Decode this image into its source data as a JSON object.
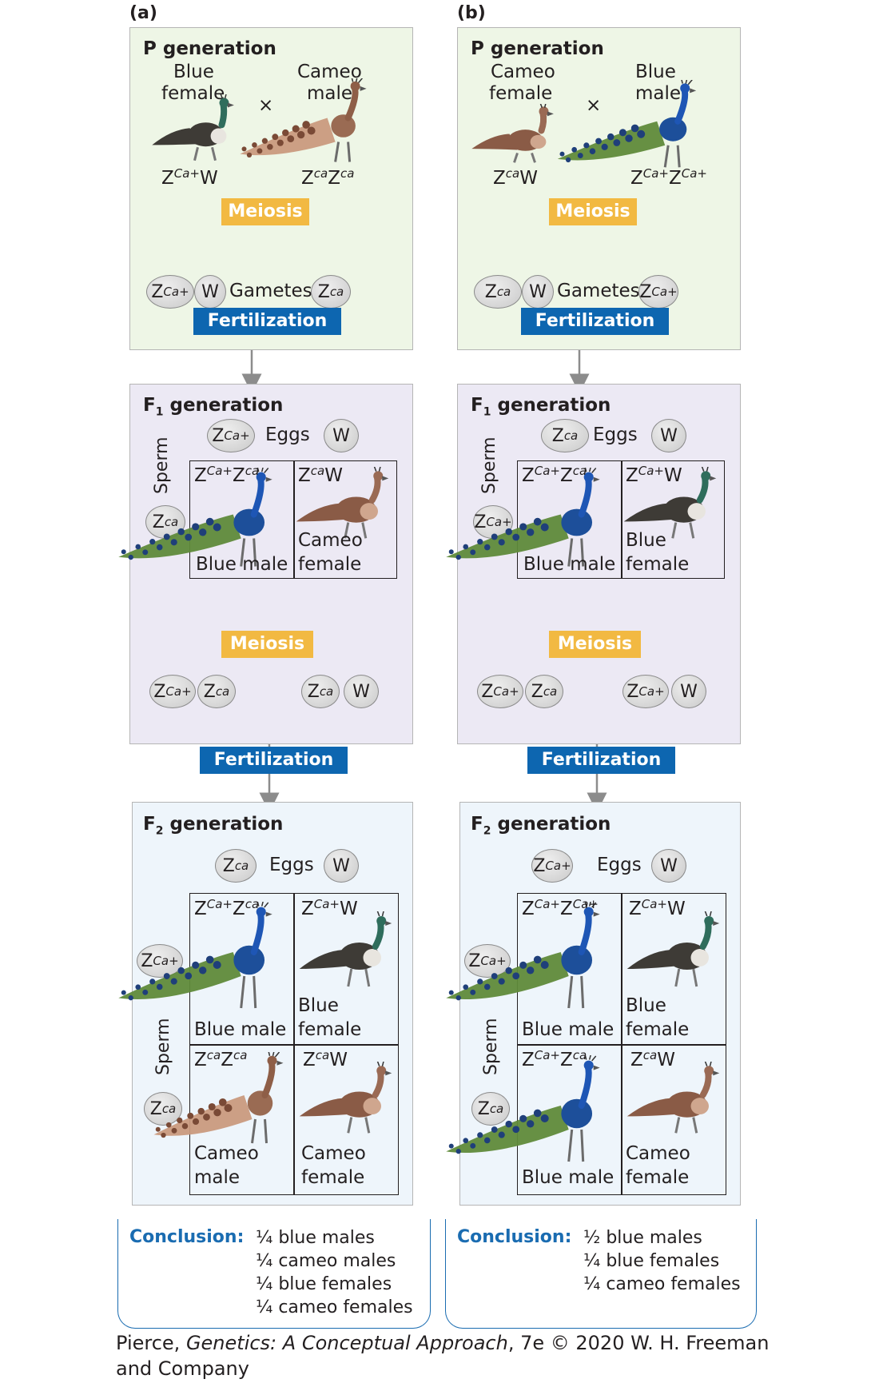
{
  "panels": {
    "a": {
      "label": "(a)",
      "p": {
        "title": "P generation",
        "female_label_1": "Blue",
        "female_label_2": "female",
        "male_label_1": "Cameo",
        "male_label_2": "male",
        "cross": "×",
        "female_genotype": "Z<sup>Ca+</sup>W",
        "male_genotype": "Z<sup>ca</sup>Z<sup>ca</sup>",
        "meiosis": "Meiosis",
        "gametes": "Gametes",
        "gamete_1": "Z<sup>Ca+</sup>",
        "gamete_2": "W",
        "gamete_3": "Z<sup>ca</sup>",
        "fertilization": "Fertilization"
      },
      "f1": {
        "title_main": "F",
        "title_sub": "1",
        "title_rest": " generation",
        "eggs": "Eggs",
        "egg_1": "Z<sup>Ca+</sup>",
        "egg_2": "W",
        "sperm": "Sperm",
        "sperm_1": "Z<sup>ca</sup>",
        "cell_1_genotype": "Z<sup>Ca+</sup>Z<sup>ca</sup>",
        "cell_1_label": "Blue male",
        "cell_2_genotype": "Z<sup>ca</sup>W",
        "cell_2_label_1": "Cameo",
        "cell_2_label_2": "female",
        "meiosis": "Meiosis",
        "g1": "Z<sup>Ca+</sup>",
        "g2": "Z<sup>ca</sup>",
        "g3": "Z<sup>ca</sup>",
        "g4": "W",
        "fertilization": "Fertilization"
      },
      "f2": {
        "title_main": "F",
        "title_sub": "2",
        "title_rest": " generation",
        "eggs": "Eggs",
        "egg_1": "Z<sup>ca</sup>",
        "egg_2": "W",
        "sperm": "Sperm",
        "sperm_1": "Z<sup>Ca+</sup>",
        "sperm_2": "Z<sup>ca</sup>",
        "c11_genotype": "Z<sup>Ca+</sup>Z<sup>ca</sup>",
        "c11_label": "Blue male",
        "c12_genotype": "Z<sup>Ca+</sup>W",
        "c12_label_1": "Blue",
        "c12_label_2": "female",
        "c21_genotype": "Z<sup>ca</sup>Z<sup>ca</sup>",
        "c21_label_1": "Cameo",
        "c21_label_2": "male",
        "c22_genotype": "Z<sup>ca</sup>W",
        "c22_label_1": "Cameo",
        "c22_label_2": "female"
      },
      "conclusion_head": "Conclusion:",
      "conclusion": [
        "¼ blue males",
        "¼ cameo males",
        "¼ blue females",
        "¼ cameo females"
      ]
    },
    "b": {
      "label": "(b)",
      "p": {
        "title": "P generation",
        "female_label_1": "Cameo",
        "female_label_2": "female",
        "male_label_1": "Blue",
        "male_label_2": "male",
        "cross": "×",
        "female_genotype": "Z<sup>ca</sup>W",
        "male_genotype": "Z<sup>Ca+</sup>Z<sup>Ca+</sup>",
        "meiosis": "Meiosis",
        "gametes": "Gametes",
        "gamete_1": "Z<sup>ca</sup>",
        "gamete_2": "W",
        "gamete_3": "Z<sup>Ca+</sup>",
        "fertilization": "Fertilization"
      },
      "f1": {
        "title_main": "F",
        "title_sub": "1",
        "title_rest": " generation",
        "eggs": "Eggs",
        "egg_1": "Z<sup>ca</sup>",
        "egg_2": "W",
        "sperm": "Sperm",
        "sperm_1": "Z<sup>Ca+</sup>",
        "cell_1_genotype": "Z<sup>Ca+</sup>Z<sup>ca</sup>",
        "cell_1_label": "Blue male",
        "cell_2_genotype": "Z<sup>Ca+</sup>W",
        "cell_2_label_1": "Blue",
        "cell_2_label_2": "female",
        "meiosis": "Meiosis",
        "g1": "Z<sup>Ca+</sup>",
        "g2": "Z<sup>ca</sup>",
        "g3": "Z<sup>Ca+</sup>",
        "g4": "W",
        "fertilization": "Fertilization"
      },
      "f2": {
        "title_main": "F",
        "title_sub": "2",
        "title_rest": " generation",
        "eggs": "Eggs",
        "egg_1": "Z<sup>Ca+</sup>",
        "egg_2": "W",
        "sperm": "Sperm",
        "sperm_1": "Z<sup>Ca+</sup>",
        "sperm_2": "Z<sup>ca</sup>",
        "c11_genotype": "Z<sup>Ca+</sup>Z<sup>Ca+</sup>",
        "c11_label": "Blue male",
        "c12_genotype": "Z<sup>Ca+</sup>W",
        "c12_label_1": "Blue",
        "c12_label_2": "female",
        "c21_genotype": "Z<sup>Ca+</sup>Z<sup>ca</sup>",
        "c21_label": "Blue male",
        "c22_genotype": "Z<sup>ca</sup>W",
        "c22_label_1": "Cameo",
        "c22_label_2": "female"
      },
      "conclusion_head": "Conclusion:",
      "conclusion": [
        "½ blue males",
        "¼ blue females",
        "¼ cameo females"
      ]
    }
  },
  "credit": {
    "part1": "Pierce, ",
    "title": "Genetics: A Conceptual Approach",
    "part2": ", 7e © 2020 W. H. Freeman and Company"
  },
  "colors": {
    "p_bg": "#eef6e6",
    "f1_bg": "#ece9f4",
    "f2_bg": "#eef5fb",
    "meiosis_badge": "#f2b942",
    "fertilization_badge": "#0d66b0",
    "conclusion_blue": "#1a6cb1",
    "blue_peacock": "#1d4f9a",
    "cameo_peacock": "#8b5a44"
  },
  "icons": [
    "blue-peahen-icon",
    "cameo-peacock-icon",
    "cameo-peahen-icon",
    "blue-peacock-icon",
    "cross-symbol"
  ]
}
